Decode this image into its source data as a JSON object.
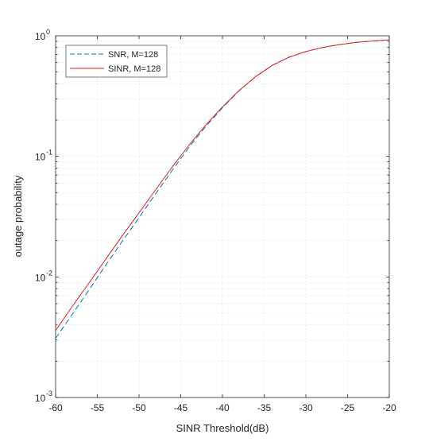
{
  "chart_data": {
    "type": "line",
    "xlabel": "SINR Threshold(dB)",
    "ylabel": "outage probability",
    "xlim": [
      -60,
      -20
    ],
    "ylim": [
      0.001,
      1
    ],
    "yscale": "log",
    "grid": true,
    "legend_position": "top-left",
    "x_ticks": [
      -60,
      -55,
      -50,
      -45,
      -40,
      -35,
      -30,
      -25,
      -20
    ],
    "x_tick_labels": [
      "-60",
      "-55",
      "-50",
      "-45",
      "-40",
      "-35",
      "-30",
      "-25",
      "-20"
    ],
    "y_ticks": [
      {
        "value": 0.001,
        "base": "10",
        "exp": "-3"
      },
      {
        "value": 0.01,
        "base": "10",
        "exp": "-2"
      },
      {
        "value": 0.1,
        "base": "10",
        "exp": "-1"
      },
      {
        "value": 1,
        "base": "10",
        "exp": "0"
      }
    ],
    "x": [
      -60,
      -58,
      -56,
      -54,
      -52,
      -50,
      -48,
      -46,
      -44,
      -42,
      -40,
      -38,
      -36,
      -34,
      -32,
      -30,
      -28,
      -26,
      -24,
      -22,
      -20
    ],
    "series": [
      {
        "name": "SNR, M=128",
        "color": "#0072BD",
        "style": "dashed",
        "values": [
          0.0031,
          0.0049,
          0.0078,
          0.0125,
          0.0198,
          0.031,
          0.049,
          0.077,
          0.119,
          0.177,
          0.253,
          0.35,
          0.46,
          0.57,
          0.665,
          0.74,
          0.8,
          0.845,
          0.88,
          0.905,
          0.925
        ]
      },
      {
        "name": "SINR, M=128",
        "color": "#E02020",
        "style": "solid",
        "values": [
          0.0036,
          0.0057,
          0.0089,
          0.014,
          0.022,
          0.034,
          0.053,
          0.082,
          0.124,
          0.182,
          0.257,
          0.352,
          0.46,
          0.57,
          0.665,
          0.74,
          0.8,
          0.845,
          0.88,
          0.905,
          0.925
        ]
      }
    ]
  }
}
